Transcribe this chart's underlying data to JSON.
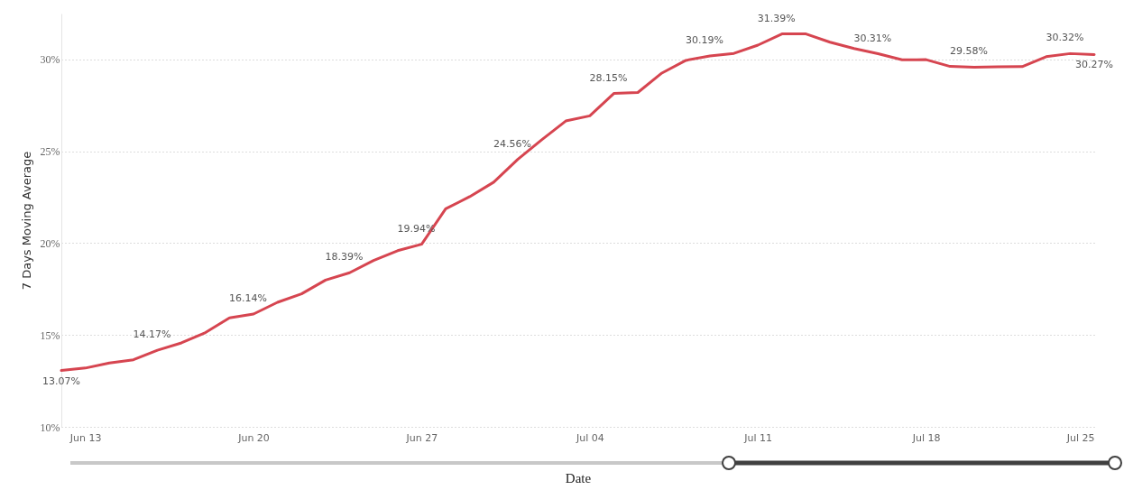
{
  "chart_data": {
    "type": "line",
    "xlabel": "Date",
    "ylabel": "7 Days Moving Average",
    "x": [
      "--06-12",
      "--06-13",
      "--06-14",
      "--06-15",
      "--06-16",
      "--06-17",
      "--06-18",
      "--06-19",
      "--06-20",
      "--06-21",
      "--06-22",
      "--06-23",
      "--06-24",
      "--06-25",
      "--06-26",
      "--06-27",
      "--06-28",
      "--06-29",
      "--06-30",
      "--07-01",
      "--07-02",
      "--07-03",
      "--07-04",
      "--07-05",
      "--07-06",
      "--07-07",
      "--07-08",
      "--07-09",
      "--07-10",
      "--07-11",
      "--07-12",
      "--07-13",
      "--07-14",
      "--07-15",
      "--07-16",
      "--07-17",
      "--07-18",
      "--07-19",
      "--07-20",
      "--07-21",
      "--07-22",
      "--07-23",
      "--07-24",
      "--07-25"
    ],
    "series": [
      {
        "color": "#d64550",
        "values": [
          13.07,
          13.2,
          13.48,
          13.65,
          14.17,
          14.57,
          15.13,
          15.93,
          16.14,
          16.78,
          17.24,
          17.99,
          18.39,
          19.06,
          19.59,
          19.94,
          21.87,
          22.53,
          23.32,
          24.56,
          25.63,
          26.65,
          26.93,
          28.15,
          28.2,
          29.26,
          29.95,
          30.19,
          30.33,
          30.78,
          31.39,
          31.39,
          30.94,
          30.6,
          30.31,
          29.98,
          29.99,
          29.62,
          29.58,
          29.6,
          29.61,
          30.15,
          30.32,
          30.27
        ],
        "value_labels": [
          "13.07%",
          null,
          null,
          null,
          "14.17%",
          null,
          null,
          null,
          "16.14%",
          null,
          null,
          null,
          "18.39%",
          null,
          null,
          "19.94%",
          null,
          null,
          null,
          "24.56%",
          null,
          null,
          null,
          "28.15%",
          null,
          null,
          null,
          "30.19%",
          null,
          null,
          "31.39%",
          null,
          null,
          null,
          "30.31%",
          null,
          null,
          null,
          "29.58%",
          null,
          null,
          null,
          "30.32%",
          "30.27%"
        ]
      }
    ],
    "xlim": [
      "--06-12",
      "--07-25"
    ],
    "xticks": [
      {
        "value": "--06-13",
        "label": "Jun 13"
      },
      {
        "value": "--06-20",
        "label": "Jun 20"
      },
      {
        "value": "--06-27",
        "label": "Jun 27"
      },
      {
        "value": "--07-04",
        "label": "Jul 04"
      },
      {
        "value": "--07-11",
        "label": "Jul 11"
      },
      {
        "value": "--07-18",
        "label": "Jul 18"
      },
      {
        "value": "--07-25",
        "label": "Jul 25"
      }
    ],
    "ylim": [
      10,
      32.5
    ],
    "yticks": [
      {
        "value": 10,
        "label": "10%"
      },
      {
        "value": 15,
        "label": "15%"
      },
      {
        "value": 20,
        "label": "20%"
      },
      {
        "value": 25,
        "label": "25%"
      },
      {
        "value": 30,
        "label": "30%"
      }
    ],
    "grid": "y",
    "marker": "none",
    "line_style": "solid"
  }
}
